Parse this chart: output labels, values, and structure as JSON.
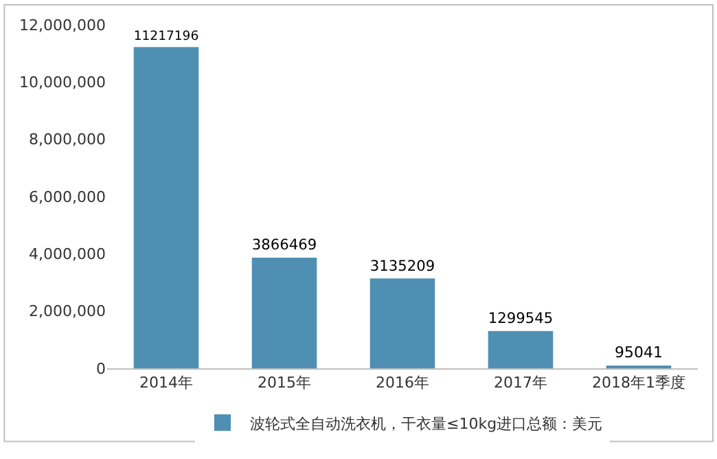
{
  "chart_data": {
    "type": "bar",
    "categories": [
      "2014年",
      "2015年",
      "2016年",
      "2017年",
      "2018年1季度"
    ],
    "series": [
      {
        "name": "波轮式全自动洗衣机，干衣量≤10kg进口总额：美元",
        "color": "#4f8fb3",
        "values": [
          11217196,
          3866469,
          3135209,
          1299545,
          95041
        ]
      }
    ],
    "ylim": [
      0,
      12000000
    ],
    "yticks": [
      {
        "value": 0,
        "label": "0"
      },
      {
        "value": 2000000,
        "label": "2,000,000"
      },
      {
        "value": 4000000,
        "label": "4,000,000"
      },
      {
        "value": 6000000,
        "label": "6,000,000"
      },
      {
        "value": 8000000,
        "label": "8,000,000"
      },
      {
        "value": 10000000,
        "label": "10,000,000"
      },
      {
        "value": 12000000,
        "label": "12,000,000"
      }
    ],
    "data_labels": true,
    "legend": "bottom"
  }
}
